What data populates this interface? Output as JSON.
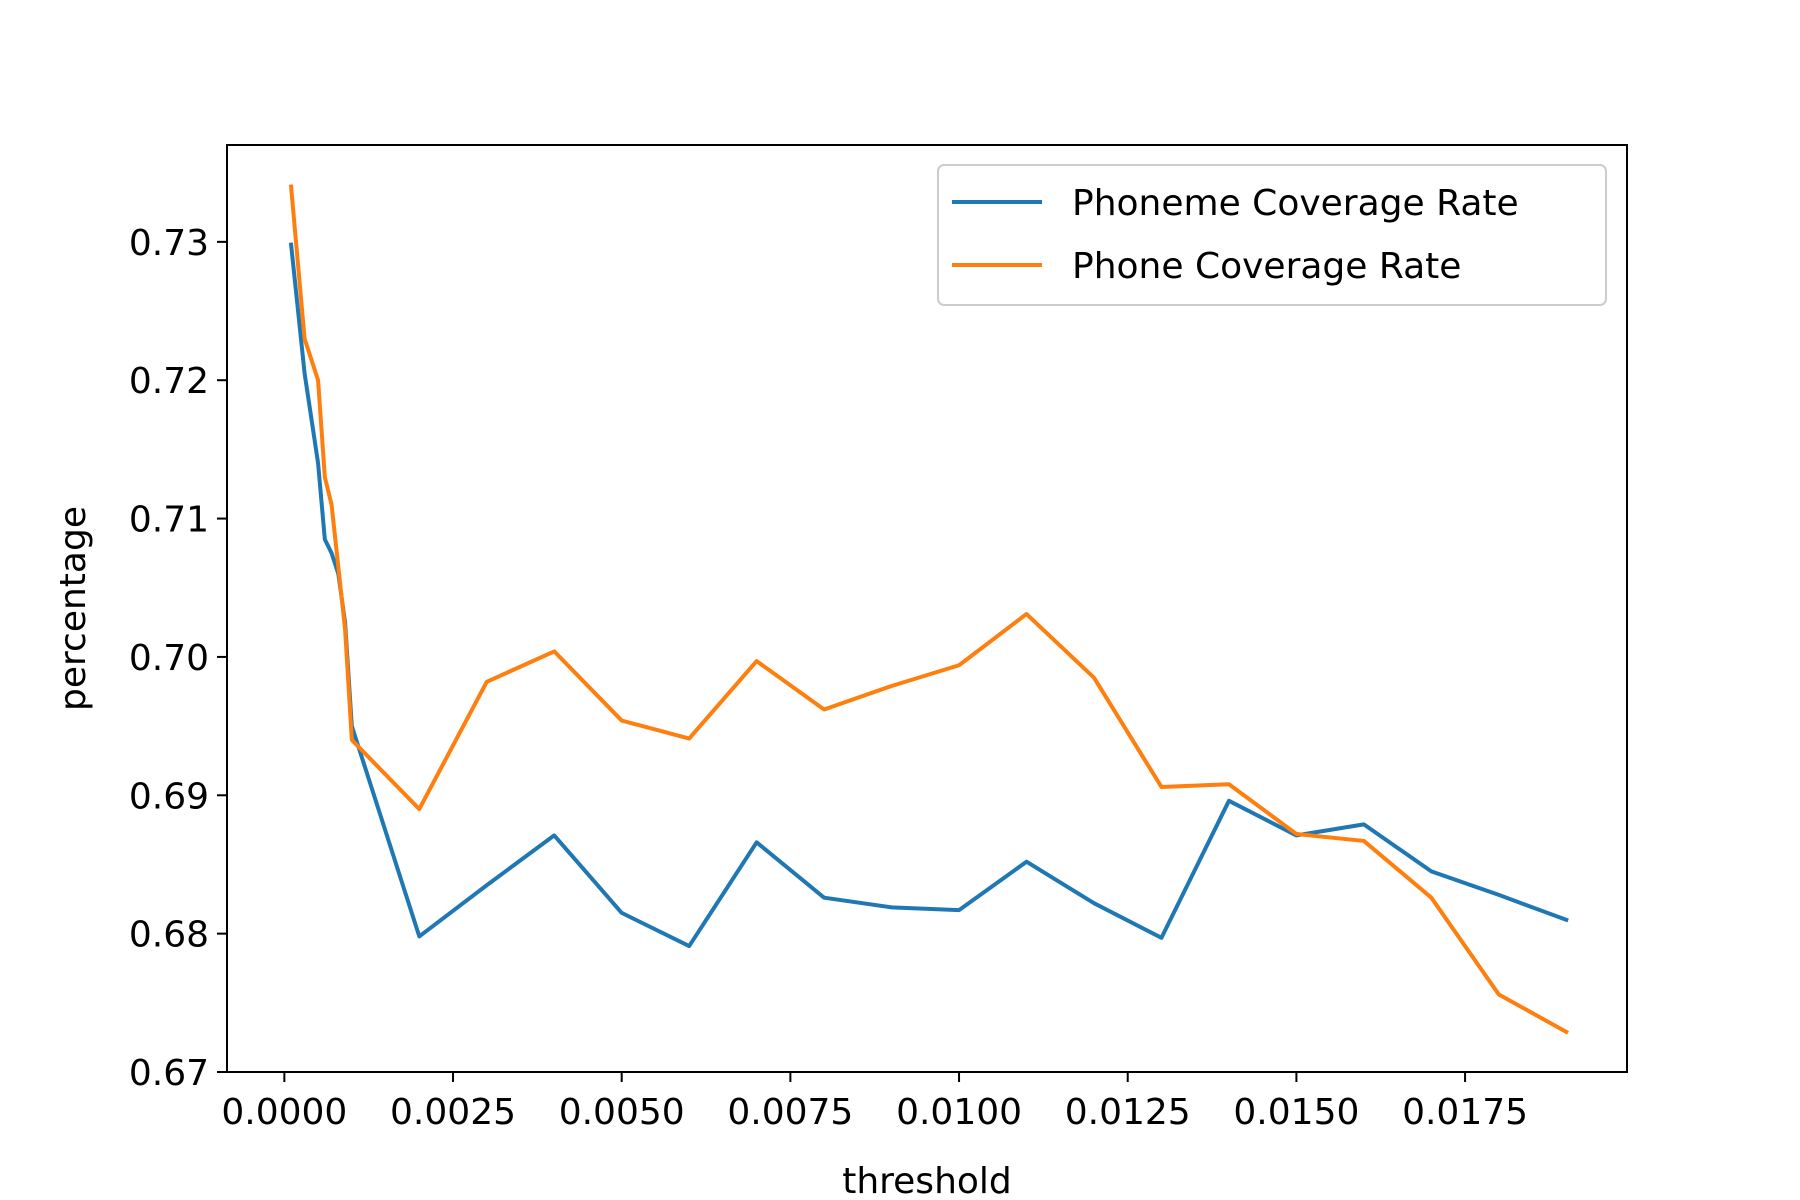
{
  "chart_data": {
    "type": "line",
    "xlabel": "threshold",
    "ylabel": "percentage",
    "xlim": [
      -0.00085,
      0.0199
    ],
    "ylim": [
      0.67,
      0.737
    ],
    "xticks": [
      0.0,
      0.0025,
      0.005,
      0.0075,
      0.01,
      0.0125,
      0.015,
      0.0175
    ],
    "xtick_labels": [
      "0.0000",
      "0.0025",
      "0.0050",
      "0.0075",
      "0.0100",
      "0.0125",
      "0.0150",
      "0.0175"
    ],
    "yticks": [
      0.67,
      0.68,
      0.69,
      0.7,
      0.71,
      0.72,
      0.73
    ],
    "ytick_labels": [
      "0.67",
      "0.68",
      "0.69",
      "0.70",
      "0.71",
      "0.72",
      "0.73"
    ],
    "grid": false,
    "legend_position": "top-right",
    "series": [
      {
        "name": "Phoneme Coverage Rate",
        "color": "#1f77b4",
        "points": [
          [
            0.0001,
            0.7298
          ],
          [
            0.0003,
            0.7205
          ],
          [
            0.0005,
            0.714
          ],
          [
            0.0006,
            0.7085
          ],
          [
            0.0007,
            0.7075
          ],
          [
            0.0008,
            0.706
          ],
          [
            0.0009,
            0.7025
          ],
          [
            0.001,
            0.695
          ],
          [
            0.002,
            0.6798
          ],
          [
            0.003,
            0.6835
          ],
          [
            0.004,
            0.6871
          ],
          [
            0.005,
            0.6815
          ],
          [
            0.006,
            0.6791
          ],
          [
            0.007,
            0.6866
          ],
          [
            0.008,
            0.6826
          ],
          [
            0.009,
            0.6819
          ],
          [
            0.01,
            0.6817
          ],
          [
            0.011,
            0.6852
          ],
          [
            0.012,
            0.6822
          ],
          [
            0.013,
            0.6797
          ],
          [
            0.014,
            0.6896
          ],
          [
            0.015,
            0.6871
          ],
          [
            0.016,
            0.6879
          ],
          [
            0.017,
            0.6845
          ],
          [
            0.018,
            0.6828
          ],
          [
            0.019,
            0.681
          ]
        ]
      },
      {
        "name": "Phone Coverage Rate",
        "color": "#ff7f0e",
        "points": [
          [
            0.0001,
            0.734
          ],
          [
            0.0003,
            0.723
          ],
          [
            0.0005,
            0.72
          ],
          [
            0.0006,
            0.713
          ],
          [
            0.0007,
            0.711
          ],
          [
            0.0008,
            0.7065
          ],
          [
            0.0009,
            0.702
          ],
          [
            0.001,
            0.694
          ],
          [
            0.002,
            0.689
          ],
          [
            0.003,
            0.6982
          ],
          [
            0.004,
            0.7004
          ],
          [
            0.005,
            0.6954
          ],
          [
            0.006,
            0.6941
          ],
          [
            0.007,
            0.6997
          ],
          [
            0.008,
            0.6962
          ],
          [
            0.009,
            0.6979
          ],
          [
            0.01,
            0.6994
          ],
          [
            0.011,
            0.7031
          ],
          [
            0.012,
            0.6985
          ],
          [
            0.013,
            0.6906
          ],
          [
            0.014,
            0.6908
          ],
          [
            0.015,
            0.6872
          ],
          [
            0.016,
            0.6867
          ],
          [
            0.017,
            0.6826
          ],
          [
            0.018,
            0.6756
          ],
          [
            0.019,
            0.6729
          ]
        ]
      }
    ]
  }
}
